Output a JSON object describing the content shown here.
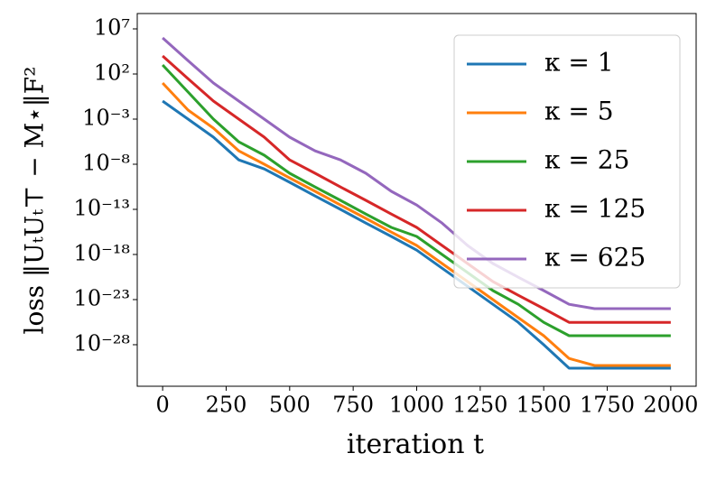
{
  "chart_data": {
    "type": "line",
    "x_label": "iteration t",
    "y_label": "loss ‖UₜUₜ⊤ − M⋆‖F²",
    "x": [
      0,
      100,
      200,
      300,
      400,
      500,
      600,
      700,
      800,
      900,
      1000,
      1100,
      1200,
      1300,
      1400,
      1500,
      1600,
      1700,
      1800,
      1900,
      2000
    ],
    "series": [
      {
        "name": "κ = 1",
        "color": "#1f77b4",
        "values": [
          0.1,
          0.001,
          1e-05,
          3e-08,
          3e-09,
          1e-10,
          3e-12,
          1e-13,
          3e-15,
          1e-16,
          3e-18,
          3e-20,
          3e-22,
          3e-24,
          3e-26,
          1e-28,
          2.5e-31,
          2.5e-31,
          2.5e-31,
          2.5e-31,
          2.5e-31
        ]
      },
      {
        "name": "κ = 5",
        "color": "#ff7f0e",
        "values": [
          10.0,
          0.01,
          0.0001,
          3e-07,
          1e-08,
          3e-10,
          1e-11,
          3e-13,
          1e-14,
          3e-16,
          1e-17,
          1e-19,
          1e-21,
          1e-23,
          1e-25,
          1e-27,
          3e-30,
          5e-31,
          5e-31,
          5e-31,
          5e-31
        ]
      },
      {
        "name": "κ = 25",
        "color": "#2ca02c",
        "values": [
          1000.0,
          1,
          0.001,
          3e-06,
          1e-07,
          1e-09,
          3e-11,
          1e-12,
          3e-14,
          1e-15,
          1e-16,
          1e-18,
          1e-20,
          1e-22,
          3e-24,
          3e-26,
          1e-27,
          1e-27,
          1e-27,
          1e-27,
          1e-27
        ]
      },
      {
        "name": "κ = 125",
        "color": "#d62728",
        "values": [
          10000.0,
          30.0,
          0.1,
          0.001,
          1e-05,
          3e-08,
          1e-09,
          3e-11,
          1e-12,
          3e-14,
          1e-15,
          1e-17,
          1e-19,
          1e-21,
          3e-23,
          1e-24,
          3e-26,
          3e-26,
          3e-26,
          3e-26,
          3e-26
        ]
      },
      {
        "name": "κ = 625",
        "color": "#9467bd",
        "values": [
          1000000.0,
          3000.0,
          10.0,
          0.1,
          0.001,
          1e-05,
          3e-07,
          3e-08,
          1e-09,
          1e-11,
          3e-13,
          3e-15,
          1e-17,
          1e-19,
          3e-21,
          1e-22,
          3e-24,
          1e-24,
          1e-24,
          1e-24,
          1e-24
        ]
      }
    ],
    "xlim": [
      -100,
      2100
    ],
    "xticks": [
      0,
      250,
      500,
      750,
      1000,
      1250,
      1500,
      1750,
      2000
    ],
    "ylim": [
      2.5e-33,
      500000000.0
    ],
    "y_scale": "log",
    "yticks": [
      {
        "value": 10000000.0,
        "label": "10⁷"
      },
      {
        "value": 100.0,
        "label": "10²"
      },
      {
        "value": 0.001,
        "label": "10⁻³"
      },
      {
        "value": 1e-08,
        "label": "10⁻⁸"
      },
      {
        "value": 1e-13,
        "label": "10⁻¹³"
      },
      {
        "value": 1e-18,
        "label": "10⁻¹⁸"
      },
      {
        "value": 1e-23,
        "label": "10⁻²³"
      },
      {
        "value": 1e-28,
        "label": "10⁻²⁸"
      }
    ],
    "legend": "upper right",
    "grid": false
  }
}
